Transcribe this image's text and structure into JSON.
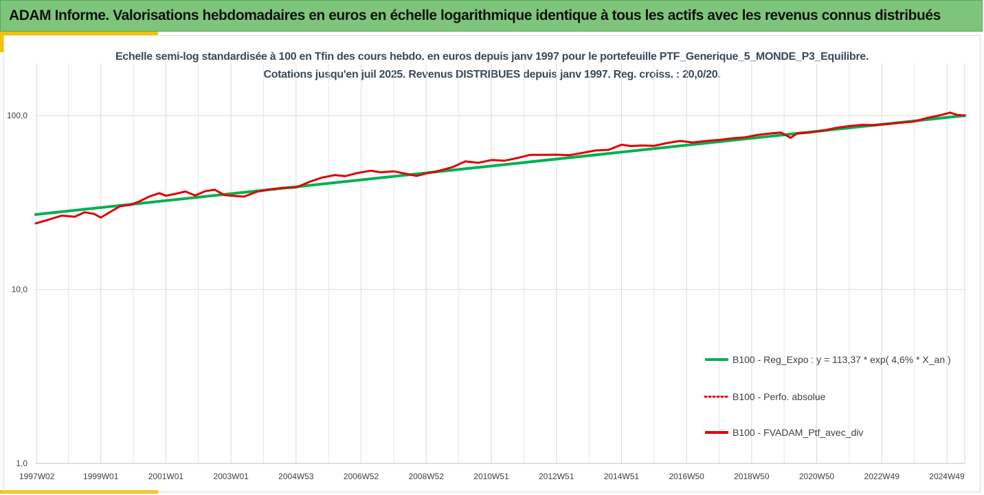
{
  "banner": {
    "title": "ADAM Informe. Valorisations hebdomadaires en euros en échelle logarithmique identique à tous les actifs avec les revenus connus distribués"
  },
  "colors": {
    "banner_bg": "#7dc57a",
    "accent": "#f2c200",
    "regression": "#00b050",
    "series": "#e00000"
  },
  "chart_data": {
    "type": "line",
    "title_line1": "Echelle semi-log standardisée  à 100 en Tfin des cours hebdo.  en euros depuis janv 1997 pour le portefeuille PTF_Generique_5_MONDE_P3_Equilibre.",
    "title_line2": "Cotations  jusqu'en juil 2025. Revenus DISTRIBUES depuis janv 1997. Reg. croiss. : 20,0/20.",
    "y_scale": "log",
    "ylim": [
      1,
      200
    ],
    "y_ticks": [
      "1,0",
      "10,0",
      "100,0"
    ],
    "x_range": [
      1997.0,
      2025.55
    ],
    "x_tick_labels": [
      "1997W02",
      "1999W01",
      "2001W01",
      "2003W01",
      "2004W53",
      "2006W52",
      "2008W52",
      "2010W51",
      "2012W51",
      "2014W51",
      "2016W50",
      "2018W50",
      "2020W50",
      "2022W49",
      "2024W49"
    ],
    "x_tick_years": [
      1997.02,
      1999.0,
      2001.0,
      2003.0,
      2005.0,
      2007.0,
      2009.0,
      2011.0,
      2013.0,
      2015.0,
      2017.0,
      2019.0,
      2021.0,
      2023.0,
      2025.0
    ],
    "grid": true,
    "legend_position": "bottom-right",
    "series": [
      {
        "name": "B100 - Reg_Expo : y = 113,37 * exp( 4,6% *  X_an )",
        "style": "solid-thick",
        "color": "#00b050",
        "x": [
          1997.0,
          2025.55
        ],
        "y": [
          27.0,
          100.0
        ]
      },
      {
        "name": "B100 - Perfo. absolue",
        "style": "dotted",
        "color": "#e00000",
        "x": [],
        "y": []
      },
      {
        "name": "B100 - FVADAM_Ptf_avec_div",
        "style": "solid",
        "color": "#e00000",
        "x": [
          1997.0,
          1997.4,
          1997.8,
          1998.2,
          1998.5,
          1998.8,
          1999.0,
          1999.3,
          1999.6,
          1999.9,
          2000.2,
          2000.5,
          2000.8,
          2001.0,
          2001.3,
          2001.6,
          2001.9,
          2002.2,
          2002.5,
          2002.8,
          2003.1,
          2003.4,
          2003.8,
          2004.2,
          2004.6,
          2005.0,
          2005.4,
          2005.8,
          2006.2,
          2006.5,
          2006.9,
          2007.3,
          2007.6,
          2008.0,
          2008.4,
          2008.7,
          2009.0,
          2009.4,
          2009.8,
          2010.2,
          2010.6,
          2011.0,
          2011.4,
          2011.8,
          2012.2,
          2012.6,
          2013.0,
          2013.4,
          2013.8,
          2014.2,
          2014.6,
          2015.0,
          2015.3,
          2015.6,
          2016.0,
          2016.4,
          2016.8,
          2017.2,
          2017.6,
          2018.0,
          2018.4,
          2018.8,
          2019.2,
          2019.6,
          2019.9,
          2020.2,
          2020.4,
          2020.8,
          2021.2,
          2021.6,
          2022.0,
          2022.4,
          2022.8,
          2023.2,
          2023.6,
          2024.0,
          2024.4,
          2024.8,
          2025.1,
          2025.3,
          2025.55
        ],
        "y": [
          24.0,
          25.2,
          26.6,
          26.2,
          27.8,
          27.2,
          25.9,
          28.0,
          30.2,
          30.6,
          32.2,
          34.3,
          35.8,
          34.6,
          35.5,
          36.6,
          34.7,
          36.7,
          37.5,
          34.9,
          34.5,
          34.2,
          36.5,
          37.6,
          38.4,
          38.6,
          41.5,
          44.0,
          45.5,
          44.8,
          46.8,
          48.2,
          47.2,
          47.8,
          46.2,
          45.0,
          46.5,
          48.2,
          50.5,
          54.5,
          53.5,
          55.5,
          55.0,
          57.0,
          59.5,
          59.5,
          59.6,
          59.2,
          61.0,
          63.0,
          63.5,
          68.0,
          66.8,
          67.3,
          67.0,
          69.5,
          71.5,
          70.0,
          71.5,
          72.5,
          74.0,
          75.0,
          77.5,
          79.0,
          80.0,
          74.5,
          79.0,
          80.0,
          82.0,
          85.0,
          87.0,
          88.5,
          88.2,
          89.5,
          91.0,
          92.5,
          97.0,
          100.5,
          104.0,
          101.0,
          100.0
        ]
      }
    ]
  }
}
